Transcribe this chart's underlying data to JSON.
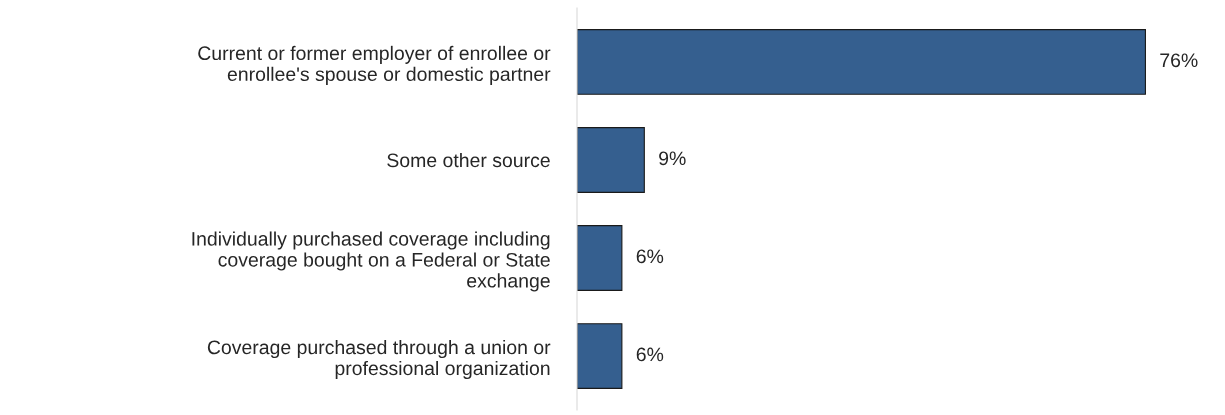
{
  "chart_data": {
    "type": "bar",
    "orientation": "horizontal",
    "categories": [
      "Current or former employer of enrollee or\nenrollee's spouse or domestic partner",
      "Some other source",
      "Individually purchased coverage including\ncoverage bought on a Federal or State\nexchange",
      "Coverage purchased through a union or\nprofessional organization"
    ],
    "values": [
      76,
      9,
      6,
      6
    ],
    "value_labels": [
      "76%",
      "9%",
      "6%",
      "6%"
    ],
    "color": "#355f8f",
    "grid": false,
    "legend": false
  }
}
